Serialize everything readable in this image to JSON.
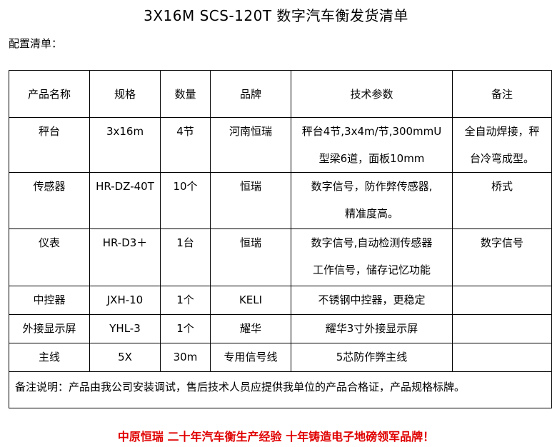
{
  "title": "3X16M SCS-120T 数字汽车衡发货清单",
  "subtitle": "配置清单：",
  "headers": [
    "产品名称",
    "规格",
    "数量",
    "品牌",
    "技术参数",
    "备注"
  ],
  "rows": [
    {
      "name": "秤台",
      "spec": "3x16m",
      "qty": "4节",
      "brand": "河南恒瑞",
      "params": [
        "秤台4节,3x4m/节,300mmU",
        "型梁6道，面板10mm"
      ],
      "remark": [
        "全自动焊接，秤",
        "台冷弯成型。"
      ]
    },
    {
      "name": "传感器",
      "spec": "HR-DZ-40T",
      "qty": "10个",
      "brand": "恒瑞",
      "params": [
        "数字信号，防作弊传感器,",
        "精准度高。"
      ],
      "remark": [
        "桥式",
        ""
      ]
    },
    {
      "name": "仪表",
      "spec": "HR-D3＋",
      "qty": "1台",
      "brand": "恒瑞",
      "params": [
        "数字信号,自动检测传感器",
        "工作信号，储存记忆功能"
      ],
      "remark": [
        "数字信号",
        ""
      ]
    },
    {
      "name": "中控器",
      "spec": "JXH-10",
      "qty": "1个",
      "brand": "KELI",
      "params": [
        "不锈钢中控器，更稳定"
      ],
      "remark": [
        ""
      ]
    },
    {
      "name": "外接显示屏",
      "spec": "YHL-3",
      "qty": "1个",
      "brand": "耀华",
      "params": [
        "耀华3寸外接显示屏"
      ],
      "remark": [
        ""
      ]
    },
    {
      "name": "主线",
      "spec": "5X",
      "qty": "30m",
      "brand": "专用信号线",
      "params": [
        "5芯防作弊主线"
      ],
      "remark": [
        ""
      ]
    }
  ],
  "note": "备注说明：产品由我公司安装调试，售后技术人员应提供我单位的产品合格证，产品规格标牌。",
  "slogan": "中原恒瑞 二十年汽车衡生产经验 十年铸造电子地磅领军品牌！",
  "colors": {
    "slogan": "#e00000"
  }
}
